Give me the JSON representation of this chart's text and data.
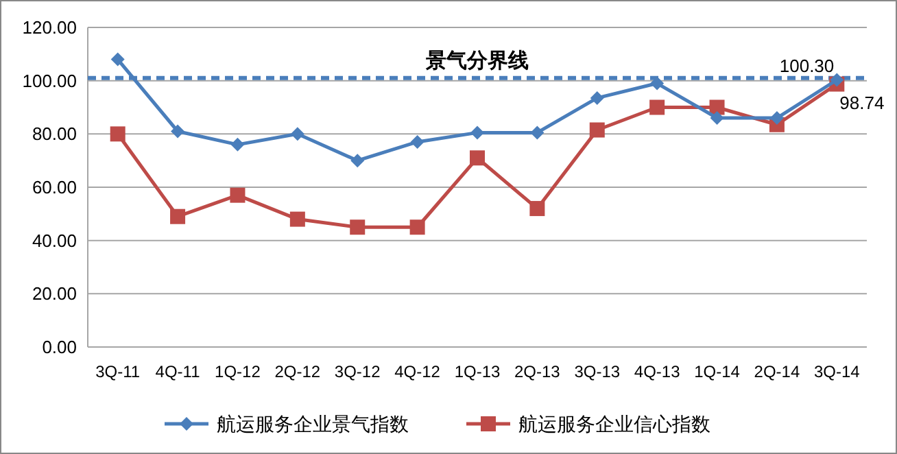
{
  "chart_data": {
    "type": "line",
    "categories": [
      "3Q-11",
      "4Q-11",
      "1Q-12",
      "2Q-12",
      "3Q-12",
      "4Q-12",
      "1Q-13",
      "2Q-13",
      "3Q-13",
      "4Q-13",
      "1Q-14",
      "2Q-14",
      "3Q-14"
    ],
    "series": [
      {
        "name": "航运服务企业景气指数",
        "color": "#4a7ebb",
        "marker": "diamond",
        "values": [
          108,
          81,
          76,
          80,
          70,
          77,
          80.5,
          80.5,
          93.5,
          99,
          86,
          86,
          100.3
        ],
        "value_labels": [
          null,
          null,
          null,
          null,
          null,
          null,
          null,
          null,
          null,
          null,
          null,
          null,
          "100.30"
        ]
      },
      {
        "name": "航运服务企业信心指数",
        "color": "#be4b48",
        "marker": "square",
        "values": [
          80,
          49,
          57,
          48,
          45,
          45,
          71,
          52,
          81.5,
          90,
          90,
          83.5,
          98.74
        ],
        "value_labels": [
          null,
          null,
          null,
          null,
          null,
          null,
          null,
          null,
          null,
          null,
          null,
          null,
          "98.74"
        ]
      }
    ],
    "ylim": [
      0,
      120
    ],
    "yticks": [
      {
        "value": 0,
        "label": "0.00"
      },
      {
        "value": 20,
        "label": "20.00"
      },
      {
        "value": 40,
        "label": "40.00"
      },
      {
        "value": 60,
        "label": "60.00"
      },
      {
        "value": 80,
        "label": "80.00"
      },
      {
        "value": 100,
        "label": "100.00"
      },
      {
        "value": 120,
        "label": "120.00"
      }
    ],
    "grid": "y",
    "legend": "bottom",
    "ref_lines": [
      {
        "axis": "y",
        "value": 101,
        "label": "景气分界线",
        "color": "#4a7ebb",
        "line_style": "dashed"
      }
    ]
  }
}
